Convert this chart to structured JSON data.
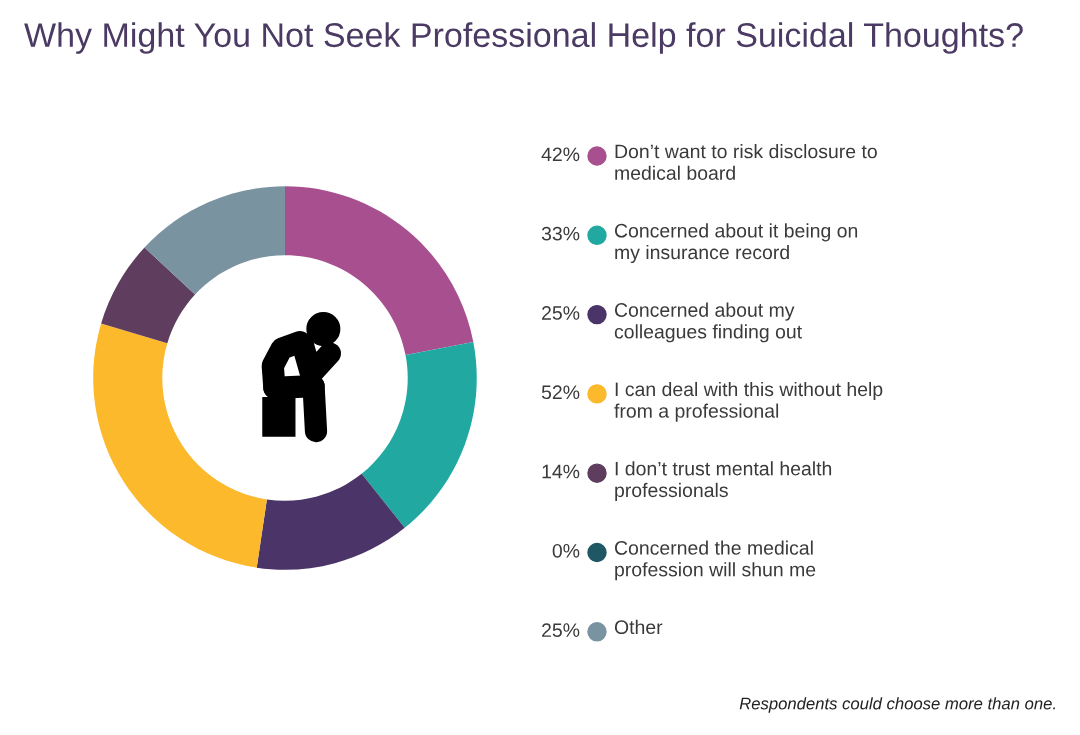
{
  "chart_data": {
    "type": "donut",
    "title": "Why Might You Not Seek Professional Help for Suicidal Thoughts?",
    "categories": [
      "Don’t want to risk disclosure to\nmedical board",
      "Concerned about it being on\nmy insurance record",
      "Concerned about my\ncolleagues finding out",
      "I can deal with this without help\nfrom a professional",
      "I don’t trust mental health\nprofessionals",
      "Concerned the medical\nprofession will shun me",
      "Other"
    ],
    "values": [
      42,
      33,
      25,
      52,
      14,
      0,
      25
    ],
    "colors": [
      "#a8508f",
      "#21a9a1",
      "#4a3468",
      "#fbb92b",
      "#5f3d5f",
      "#1f5765",
      "#7a93a1"
    ],
    "value_labels": [
      "42%",
      "33%",
      "25%",
      "52%",
      "14%",
      "0%",
      "25%"
    ],
    "legend": "right",
    "annotations": [
      "Respondents could choose more than one."
    ]
  }
}
